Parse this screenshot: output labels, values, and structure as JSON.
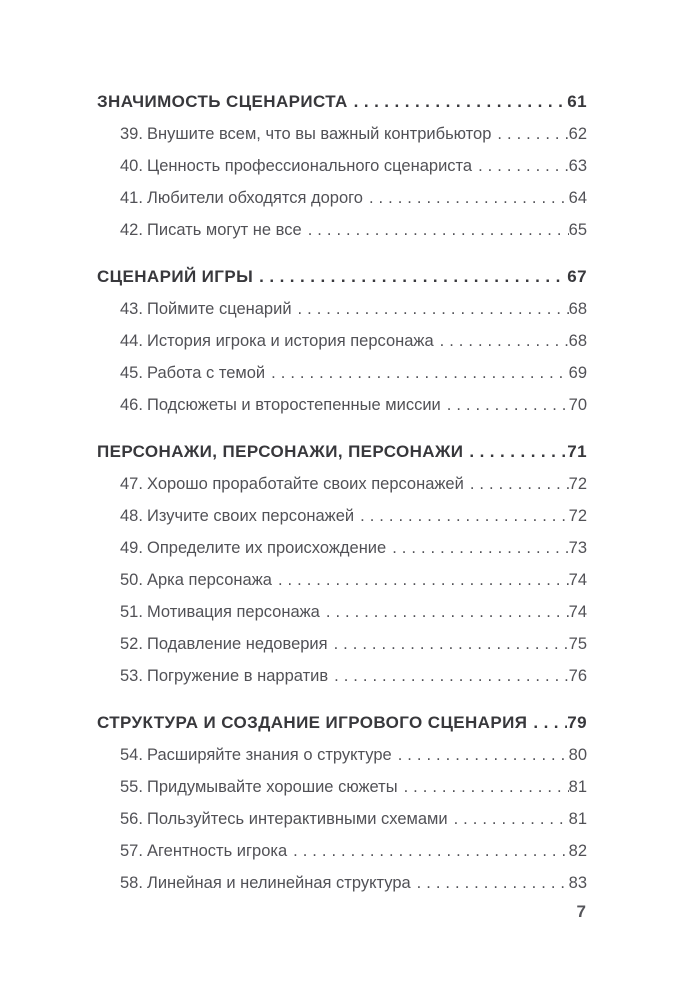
{
  "page": {
    "number": "7"
  },
  "colors": {
    "heading_text": "#38383c",
    "item_text": "#515156",
    "footer_text": "#55555a",
    "background": "#ffffff"
  },
  "toc": {
    "sections": [
      {
        "title": "ЗНАЧИМОСТЬ СЦЕНАРИСТА",
        "page": "61",
        "items": [
          {
            "num": "39.",
            "title": "Внушите всем, что вы важный контрибьютор",
            "page": "62"
          },
          {
            "num": "40.",
            "title": "Ценность профессионального сценариста",
            "page": "63"
          },
          {
            "num": "41.",
            "title": "Любители обходятся дорого",
            "page": "64"
          },
          {
            "num": "42.",
            "title": "Писать могут не все",
            "page": "65"
          }
        ]
      },
      {
        "title": "СЦЕНАРИЙ ИГРЫ",
        "page": "67",
        "items": [
          {
            "num": "43.",
            "title": "Поймите сценарий",
            "page": "68"
          },
          {
            "num": "44.",
            "title": "История игрока и история персонажа",
            "page": "68"
          },
          {
            "num": "45.",
            "title": "Работа с темой",
            "page": "69"
          },
          {
            "num": "46.",
            "title": "Подсюжеты и второстепенные миссии",
            "page": "70"
          }
        ]
      },
      {
        "title": "ПЕРСОНАЖИ, ПЕРСОНАЖИ, ПЕРСОНАЖИ",
        "page": "71",
        "items": [
          {
            "num": "47.",
            "title": "Хорошо проработайте своих персонажей",
            "page": "72"
          },
          {
            "num": "48.",
            "title": "Изучите своих персонажей",
            "page": "72"
          },
          {
            "num": "49.",
            "title": "Определите их происхождение",
            "page": "73"
          },
          {
            "num": "50.",
            "title": "Арка персонажа",
            "page": "74"
          },
          {
            "num": "51.",
            "title": "Мотивация персонажа",
            "page": "74"
          },
          {
            "num": "52.",
            "title": "Подавление недоверия",
            "page": "75"
          },
          {
            "num": "53.",
            "title": "Погружение в нарратив",
            "page": "76"
          }
        ]
      },
      {
        "title": "СТРУКТУРА И СОЗДАНИЕ ИГРОВОГО СЦЕНАРИЯ",
        "page": "79",
        "items": [
          {
            "num": "54.",
            "title": "Расширяйте знания о структуре",
            "page": "80"
          },
          {
            "num": "55.",
            "title": "Придумывайте хорошие сюжеты",
            "page": "81"
          },
          {
            "num": "56.",
            "title": "Пользуйтесь интерактивными схемами",
            "page": "81"
          },
          {
            "num": "57.",
            "title": "Агентность игрока",
            "page": "82"
          },
          {
            "num": "58.",
            "title": "Линейная и нелинейная структура",
            "page": "83"
          }
        ]
      }
    ]
  }
}
